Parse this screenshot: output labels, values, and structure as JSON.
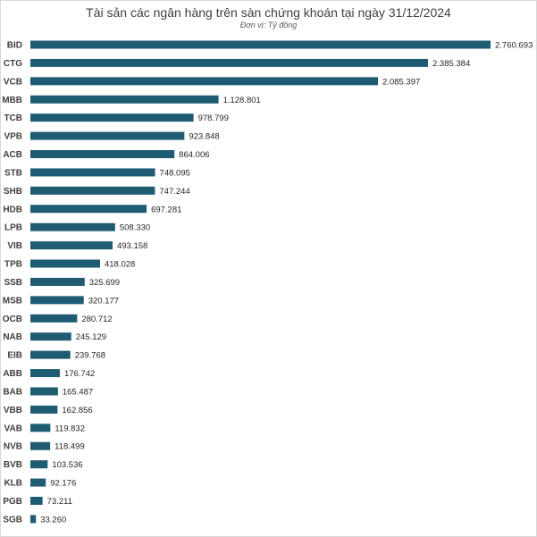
{
  "chart_data": {
    "type": "bar",
    "orientation": "horizontal",
    "title": "Tài sản các ngân hàng trên sàn chứng khoán tại ngày 31/12/2024",
    "subtitle": "Đơn vị: Tỷ đồng",
    "categories": [
      "BID",
      "CTG",
      "VCB",
      "MBB",
      "TCB",
      "VPB",
      "ACB",
      "STB",
      "SHB",
      "HDB",
      "LPB",
      "VIB",
      "TPB",
      "SSB",
      "MSB",
      "OCB",
      "NAB",
      "EIB",
      "ABB",
      "BAB",
      "VBB",
      "VAB",
      "NVB",
      "BVB",
      "KLB",
      "PGB",
      "SGB"
    ],
    "values": [
      2760693,
      2385384,
      2085397,
      1128801,
      978799,
      923848,
      864006,
      748095,
      747244,
      697281,
      508330,
      493158,
      418028,
      325699,
      320177,
      280712,
      245129,
      239768,
      176742,
      165487,
      162856,
      119832,
      118499,
      103536,
      92176,
      73211,
      33260
    ],
    "value_labels": [
      "2.760.693",
      "2.385.384",
      "2.085.397",
      "1.128.801",
      "978.799",
      "923.848",
      "864.006",
      "748.095",
      "747.244",
      "697.281",
      "508.330",
      "493.158",
      "418.028",
      "325.699",
      "320.177",
      "280.712",
      "245.129",
      "239.768",
      "176.742",
      "165.487",
      "162.856",
      "119.832",
      "118.499",
      "103.536",
      "92.176",
      "73.211",
      "33.260"
    ],
    "bar_color": "#1f5c73",
    "grid": false,
    "legend": "none"
  }
}
